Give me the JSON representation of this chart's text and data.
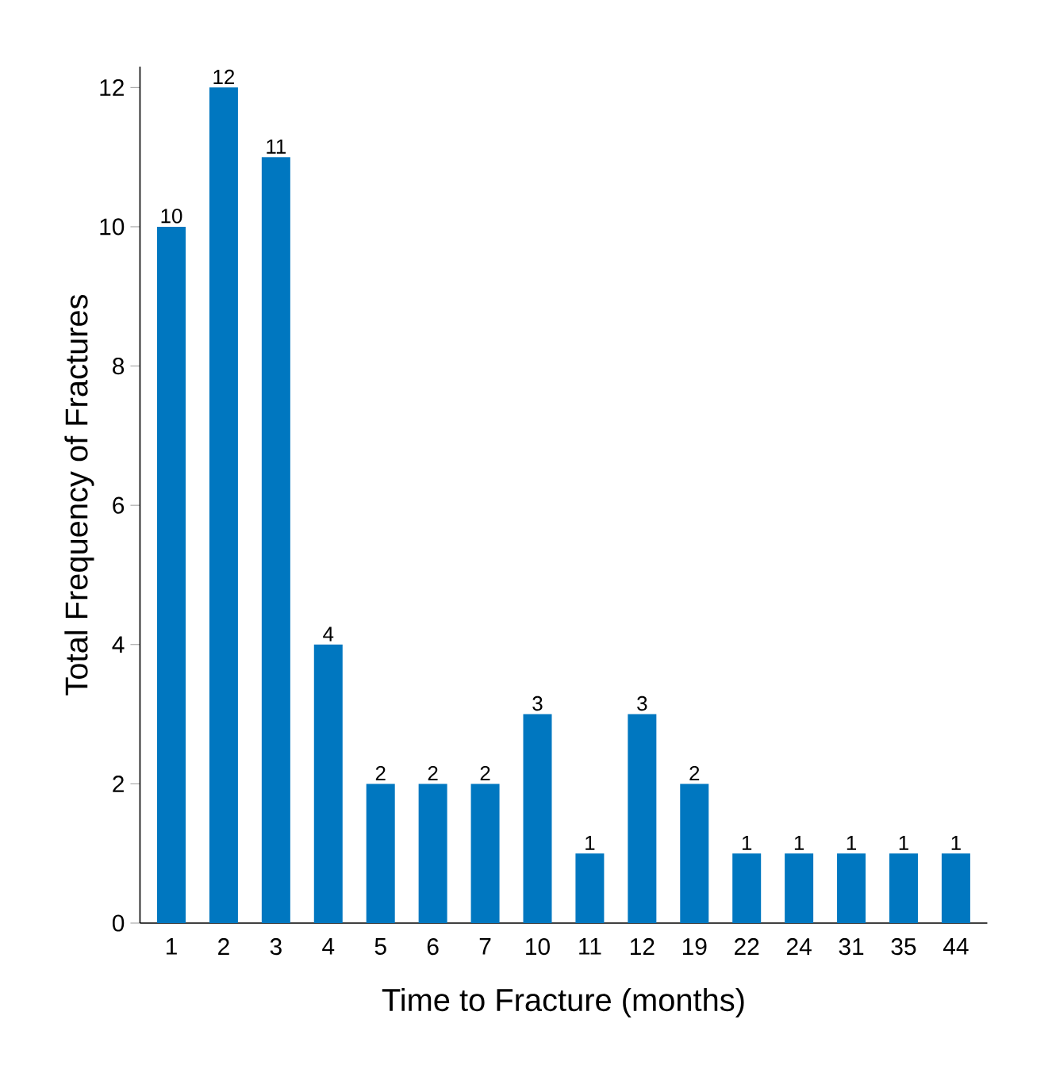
{
  "chart_data": {
    "type": "bar",
    "xlabel": "Time to Fracture (months)",
    "ylabel": "Total Frequency of Fractures",
    "categories": [
      "1",
      "2",
      "3",
      "4",
      "5",
      "6",
      "7",
      "10",
      "11",
      "12",
      "19",
      "22",
      "24",
      "31",
      "35",
      "44"
    ],
    "values": [
      10,
      12,
      11,
      4,
      2,
      2,
      2,
      3,
      1,
      3,
      2,
      1,
      1,
      1,
      1,
      1
    ],
    "color": "#0077c0",
    "ylim": [
      0,
      12.3
    ],
    "yticks": [
      0,
      2,
      4,
      6,
      8,
      10,
      12
    ],
    "data_labels": true
  }
}
